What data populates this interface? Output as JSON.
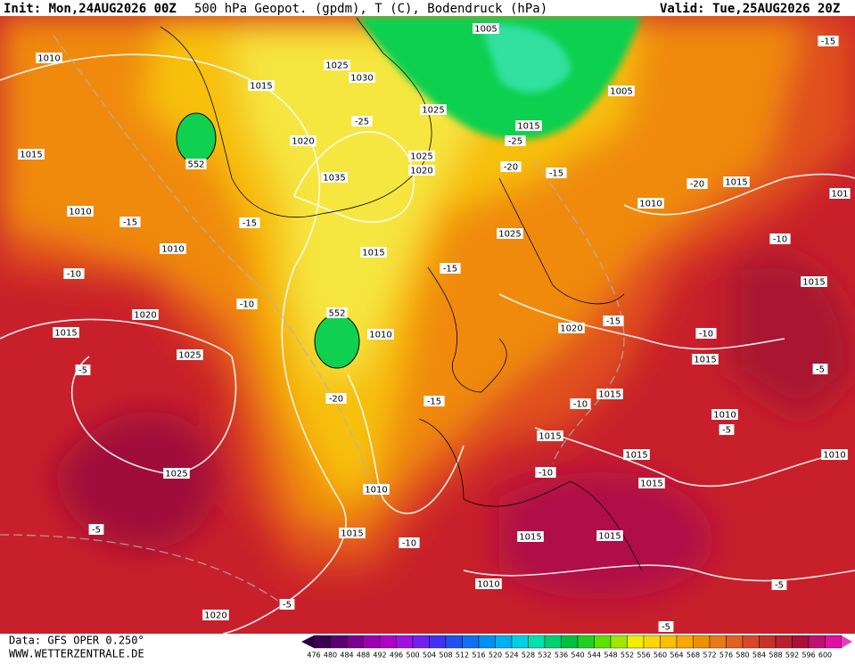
{
  "header": {
    "init": "Init: Mon,24AUG2026 00Z",
    "title": "500 hPa Geopot. (gpdm), T (C), Bodendruck (hPa)",
    "valid": "Valid: Tue,25AUG2026 20Z"
  },
  "map": {
    "labels": [
      "1010",
      "1015",
      "1025",
      "1030",
      "1005",
      "1005",
      "1015",
      "1025",
      "1020",
      "1025",
      "1020",
      "1035",
      "1015",
      "1010",
      "1010",
      "1025",
      "1015",
      "1010",
      "1015",
      "1020",
      "1015",
      "1010",
      "1020",
      "1025",
      "1015",
      "1015",
      "1015",
      "1010",
      "1015",
      "1015",
      "1015",
      "1010",
      "1025",
      "1010",
      "1015",
      "1015",
      "1015",
      "1010",
      "1020",
      "101",
      "-15",
      "-25",
      "-25",
      "-20",
      "-15",
      "-20",
      "-15",
      "-15",
      "-10",
      "-10",
      "-15",
      "-10",
      "-15",
      "-10",
      "-5",
      "-20",
      "-15",
      "-10",
      "-5",
      "-5",
      "-10",
      "-5",
      "-10",
      "-5",
      "-5",
      "-5",
      "552",
      "552"
    ]
  },
  "colorbar": {
    "values": [
      476,
      480,
      484,
      488,
      492,
      496,
      500,
      504,
      508,
      512,
      516,
      520,
      524,
      528,
      532,
      536,
      540,
      544,
      548,
      552,
      556,
      560,
      564,
      568,
      572,
      576,
      580,
      584,
      588,
      592,
      596,
      600
    ]
  },
  "footer": {
    "source": "Data: GFS OPER 0.250°",
    "site": "WWW.WETTERZENTRALE.DE"
  }
}
